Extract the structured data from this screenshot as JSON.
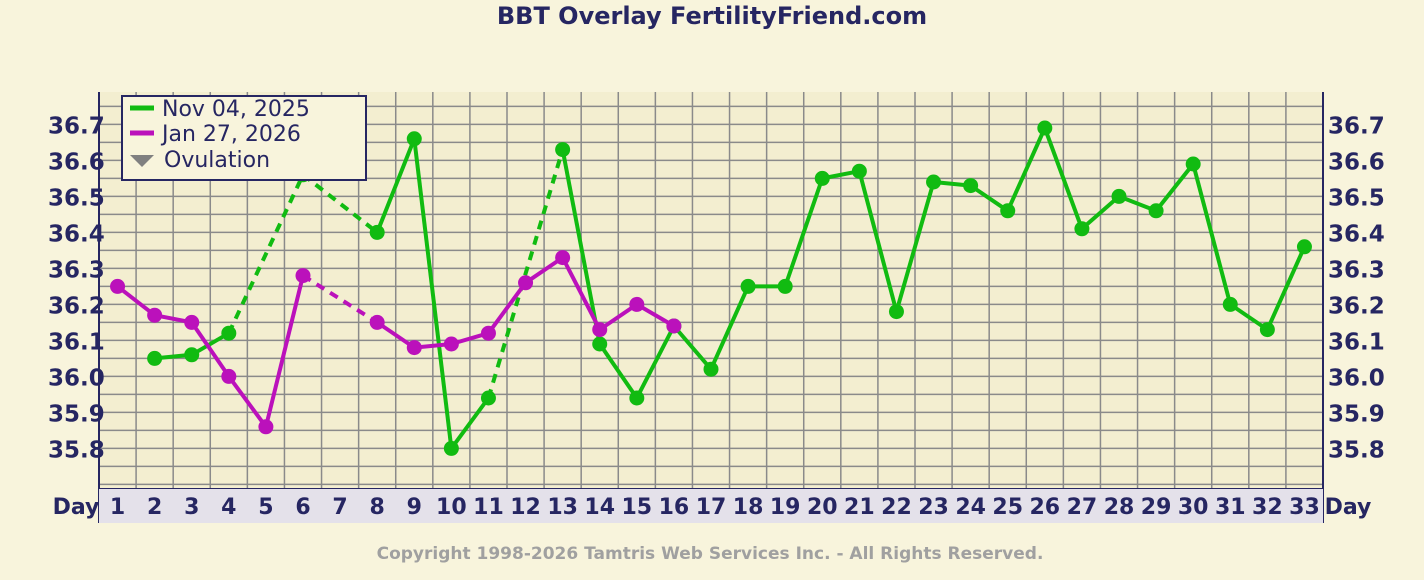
{
  "chart_data": {
    "type": "line",
    "title": "BBT Overlay FertilityFriend.com",
    "xlabel": "Day",
    "categories": [
      "1",
      "2",
      "3",
      "4",
      "5",
      "6",
      "7",
      "8",
      "9",
      "10",
      "11",
      "12",
      "13",
      "14",
      "15",
      "16",
      "17",
      "18",
      "19",
      "20",
      "21",
      "22",
      "23",
      "24",
      "25",
      "26",
      "27",
      "28",
      "29",
      "30",
      "31",
      "32",
      "33"
    ],
    "y_ticks": [
      "36.7",
      "36.6",
      "36.5",
      "36.4",
      "36.3",
      "36.2",
      "36.1",
      "36.0",
      "35.9",
      "35.8"
    ],
    "ylim": [
      35.69,
      36.79
    ],
    "grid": true,
    "legend_position": "top-left",
    "legend_ovulation_label": "Ovulation",
    "series": [
      {
        "name": "Nov 04, 2025",
        "color": "#11bb11",
        "values": [
          null,
          36.05,
          36.06,
          36.12,
          null,
          36.56,
          null,
          36.4,
          36.66,
          35.8,
          35.94,
          null,
          36.63,
          36.09,
          35.94,
          36.14,
          36.02,
          36.25,
          36.25,
          36.55,
          36.57,
          36.18,
          36.54,
          36.53,
          36.46,
          36.69,
          36.41,
          36.5,
          36.46,
          36.59,
          36.2,
          36.13,
          36.36
        ]
      },
      {
        "name": "Jan 27, 2026",
        "color": "#bb11bb",
        "values": [
          36.25,
          36.17,
          36.15,
          36.0,
          35.86,
          36.28,
          null,
          36.15,
          36.08,
          36.09,
          36.12,
          36.26,
          36.33,
          36.13,
          36.2,
          36.14,
          null,
          null,
          null,
          null,
          null,
          null,
          null,
          null,
          null,
          null,
          null,
          null,
          null,
          null,
          null,
          null,
          null
        ]
      }
    ],
    "copyright": "Copyright 1998-2026 Tamtris Web Services Inc. - All Rights Reserved."
  }
}
